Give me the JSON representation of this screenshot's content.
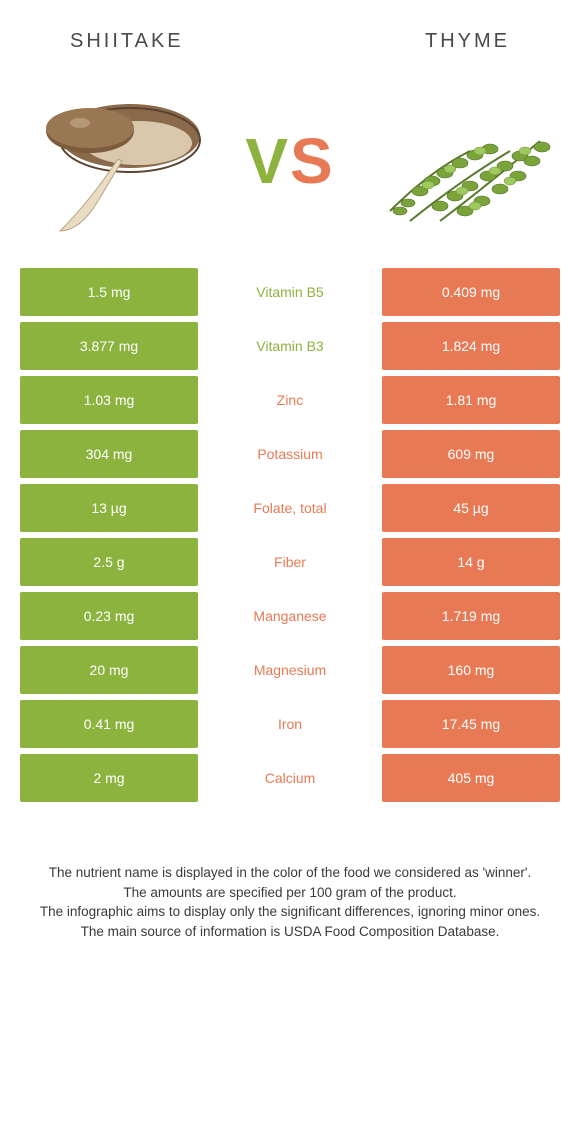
{
  "colors": {
    "left": "#8cb33e",
    "right": "#e77a54",
    "mid_bg": "#ffffff",
    "text_dark": "#4a4a4a"
  },
  "header": {
    "left_title": "SHIITAKE",
    "right_title": "THYME"
  },
  "vs": {
    "v": "V",
    "s": "S"
  },
  "rows": [
    {
      "left": "1.5 mg",
      "mid": "Vitamin B5",
      "right": "0.409 mg",
      "winner": "left"
    },
    {
      "left": "3.877 mg",
      "mid": "Vitamin B3",
      "right": "1.824 mg",
      "winner": "left"
    },
    {
      "left": "1.03 mg",
      "mid": "Zinc",
      "right": "1.81 mg",
      "winner": "right"
    },
    {
      "left": "304 mg",
      "mid": "Potassium",
      "right": "609 mg",
      "winner": "right"
    },
    {
      "left": "13 µg",
      "mid": "Folate, total",
      "right": "45 µg",
      "winner": "right"
    },
    {
      "left": "2.5 g",
      "mid": "Fiber",
      "right": "14 g",
      "winner": "right"
    },
    {
      "left": "0.23 mg",
      "mid": "Manganese",
      "right": "1.719 mg",
      "winner": "right"
    },
    {
      "left": "20 mg",
      "mid": "Magnesium",
      "right": "160 mg",
      "winner": "right"
    },
    {
      "left": "0.41 mg",
      "mid": "Iron",
      "right": "17.45 mg",
      "winner": "right"
    },
    {
      "left": "2 mg",
      "mid": "Calcium",
      "right": "405 mg",
      "winner": "right"
    }
  ],
  "footer": {
    "line1": "The nutrient name is displayed in the color of the food we considered as 'winner'.",
    "line2": "The amounts are specified per 100 gram of the product.",
    "line3": "The infographic aims to display only the significant differences, ignoring minor ones.",
    "line4": "The main source of information is USDA Food Composition Database."
  }
}
